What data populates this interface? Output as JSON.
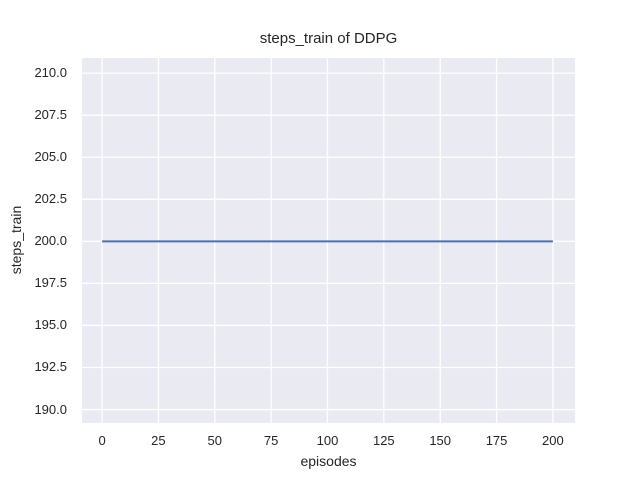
{
  "figure": {
    "background": "#FFFFFF"
  },
  "chart_data": {
    "type": "line",
    "title": "steps_train of DDPG",
    "xlabel": "episodes",
    "ylabel": "steps_train",
    "x_ticks": [
      0,
      25,
      50,
      75,
      100,
      125,
      150,
      175,
      200
    ],
    "x_tick_labels": [
      "0",
      "25",
      "50",
      "75",
      "100",
      "125",
      "150",
      "175",
      "200"
    ],
    "y_ticks": [
      190.0,
      192.5,
      195.0,
      197.5,
      200.0,
      202.5,
      205.0,
      207.5,
      210.0
    ],
    "y_tick_labels": [
      "190.0",
      "192.5",
      "195.0",
      "197.5",
      "200.0",
      "202.5",
      "205.0",
      "207.5",
      "210.0"
    ],
    "xlim": [
      -8.9,
      209.8
    ],
    "ylim": [
      189.2,
      210.9
    ],
    "grid": true,
    "legend_position": "none",
    "series": [
      {
        "name": "steps_train",
        "color": "#4C72B0",
        "x": [
          0,
          200
        ],
        "y": [
          200,
          200
        ]
      }
    ],
    "style": {
      "plot_background": "#EAEAF2",
      "grid_color": "#FFFFFF",
      "text_color": "#262626",
      "line_width": 2,
      "grid_line_width": 1.3
    }
  }
}
